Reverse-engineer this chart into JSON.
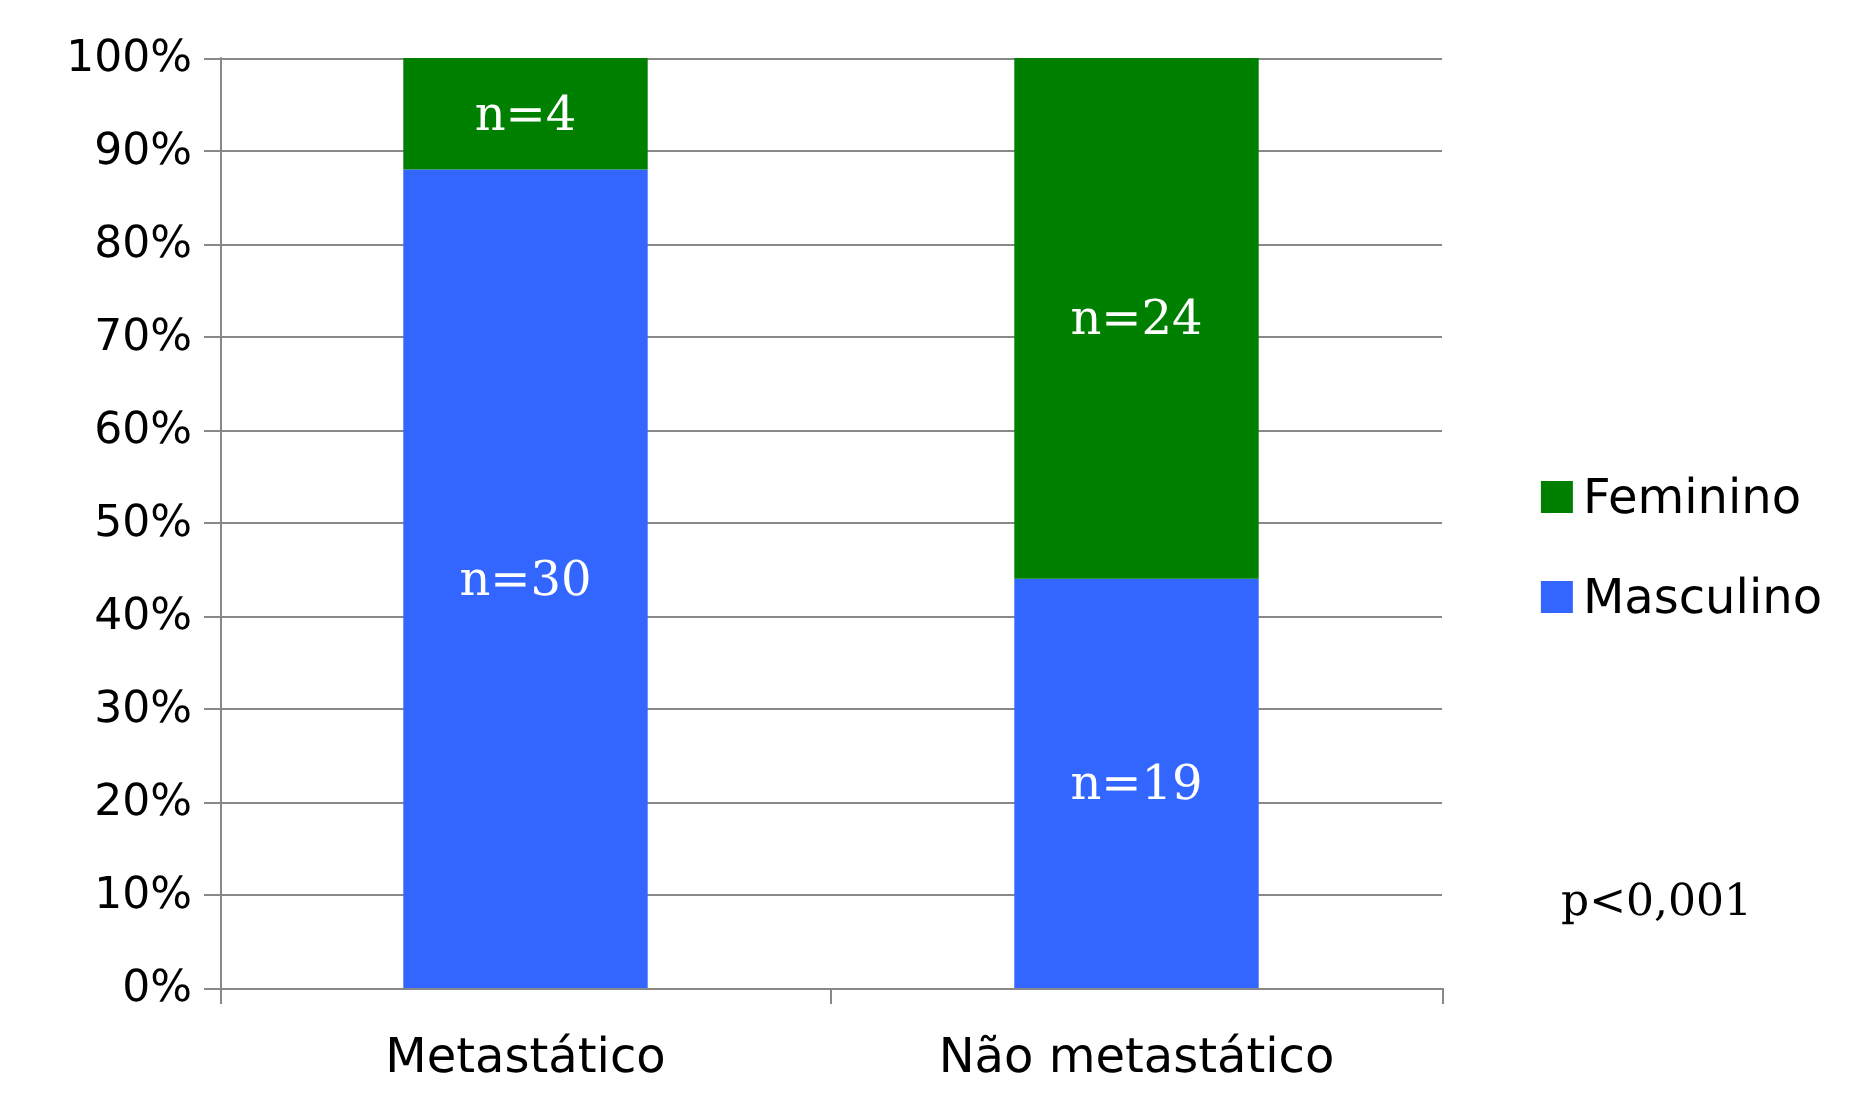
{
  "chart_data": {
    "type": "bar",
    "stacked": true,
    "categories": [
      "Metastático",
      "Não metastático"
    ],
    "series": [
      {
        "name": "Masculino",
        "color": "#3366ff",
        "values": [
          88,
          44
        ]
      },
      {
        "name": "Feminino",
        "color": "#008000",
        "values": [
          12,
          56
        ]
      }
    ],
    "ylim": [
      0,
      100
    ],
    "yticks": [
      {
        "value": 0,
        "label": "0%"
      },
      {
        "value": 10,
        "label": "10%"
      },
      {
        "value": 20,
        "label": "20%"
      },
      {
        "value": 30,
        "label": "30%"
      },
      {
        "value": 40,
        "label": "40%"
      },
      {
        "value": 50,
        "label": "50%"
      },
      {
        "value": 60,
        "label": "60%"
      },
      {
        "value": 70,
        "label": "70%"
      },
      {
        "value": 80,
        "label": "80%"
      },
      {
        "value": 90,
        "label": "90%"
      },
      {
        "value": 100,
        "label": "100%"
      }
    ],
    "grid": "y",
    "legend": "right",
    "annotations": [
      "n=30",
      "n=19",
      "n=4",
      "n=24",
      "p<0,001"
    ]
  }
}
